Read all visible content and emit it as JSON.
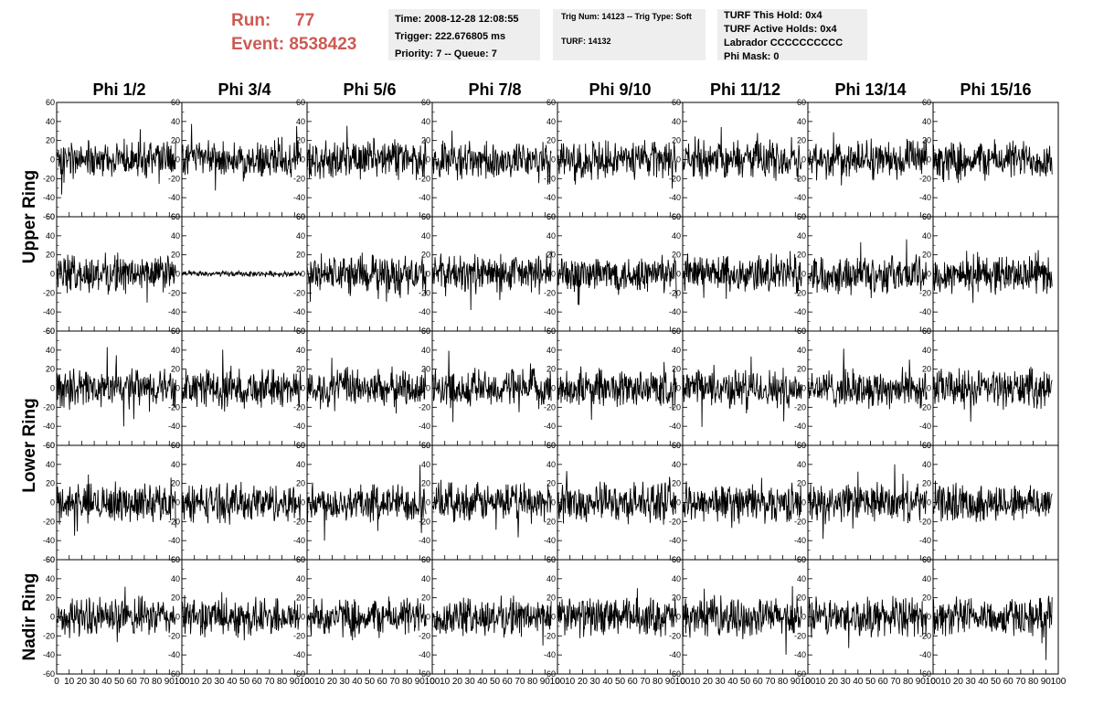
{
  "header": {
    "run_label": "Run:",
    "run_value": "77",
    "event_label": "Event:",
    "event_value": "8538423",
    "time_line": "Time: 2008-12-28 12:08:55",
    "trigger_line": "Trigger: 222.676805 ms",
    "priority_line": "Priority: 7 -- Queue: 7",
    "trig_line": "Trig Num: 14123 -- Trig Type: Soft",
    "turf_line": "TURF: 14132",
    "turf_hold_line": "TURF This Hold: 0x4",
    "turf_active_line": "TURF Active Holds: 0x4",
    "labrador_line": "Labrador CCCCCCCCCC",
    "phi_mask_line": "Phi Mask: 0"
  },
  "chart_data": {
    "type": "line",
    "title": "",
    "columns": [
      "Phi 1/2",
      "Phi 3/4",
      "Phi 5/6",
      "Phi 7/8",
      "Phi 9/10",
      "Phi 11/12",
      "Phi 13/14",
      "Phi 15/16"
    ],
    "ring_labels": [
      "Upper Ring",
      "Lower Ring",
      "Nadir Ring"
    ],
    "rows_per_ring": [
      2,
      2,
      1
    ],
    "xlim": [
      0,
      100
    ],
    "ylim": [
      -60,
      60
    ],
    "x_ticks": [
      0,
      10,
      20,
      30,
      40,
      50,
      60,
      70,
      80,
      90,
      100
    ],
    "y_ticks": [
      -60,
      -40,
      -20,
      0,
      20,
      40,
      60
    ],
    "y_tick_labels": [
      "-60",
      "-40",
      "-20",
      "0",
      "20",
      "40",
      "60"
    ],
    "x_tick_labels": [
      "0",
      "10",
      "20",
      "30",
      "40",
      "50",
      "60",
      "70",
      "80",
      "90",
      "100"
    ],
    "samples_per_trace": 260,
    "trace_x_range": [
      0,
      95
    ],
    "typical_amplitude": 20,
    "quiet_trace": {
      "row": 1,
      "col": 1,
      "amplitude": 3
    },
    "line_color": "#000000"
  }
}
